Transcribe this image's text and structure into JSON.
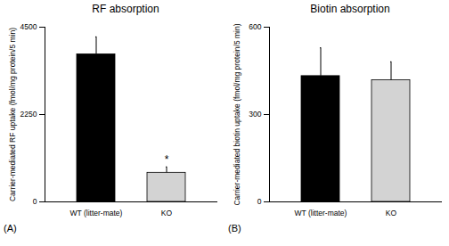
{
  "chart_data": [
    {
      "type": "bar",
      "title": "RF absorption",
      "panel_label": "(A)",
      "ylabel": "Carrier-mediated RF uptake (fmol/mg protein/5 min)",
      "categories": [
        "WT (litter-mate)",
        "KO"
      ],
      "values": [
        3800,
        750
      ],
      "errors": [
        450,
        150
      ],
      "colors": [
        "#000000",
        "#d3d3d3"
      ],
      "annotations": [
        {
          "text": "*",
          "category": "KO"
        }
      ],
      "ylim": [
        0,
        4500
      ],
      "yticks": [
        0,
        2250,
        4500
      ]
    },
    {
      "type": "bar",
      "title": "Biotin absorption",
      "panel_label": "(B)",
      "ylabel": "Carrier-mediated biotin uptake (fmol/mg protein/5 min)",
      "categories": [
        "WT (litter-mate)",
        "KO"
      ],
      "values": [
        432,
        418
      ],
      "errors": [
        97,
        63
      ],
      "colors": [
        "#000000",
        "#d3d3d3"
      ],
      "ylim": [
        0,
        600
      ],
      "yticks": [
        0,
        300,
        600
      ]
    }
  ]
}
